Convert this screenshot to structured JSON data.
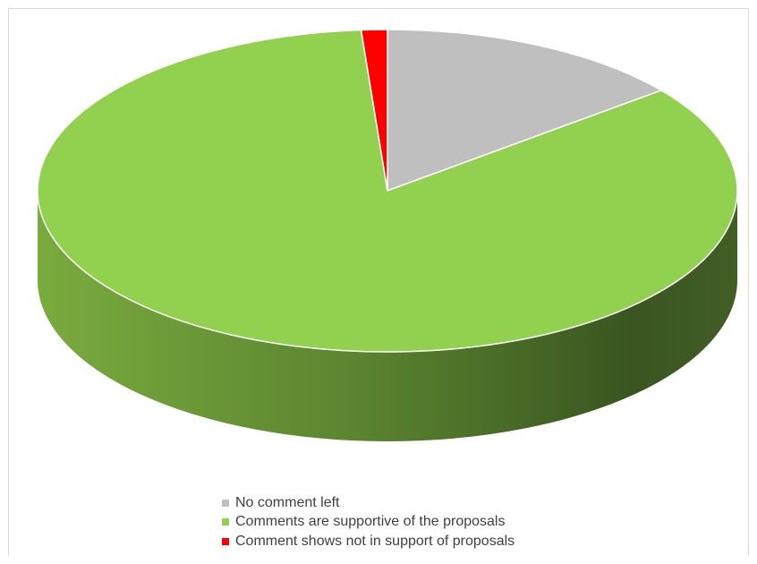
{
  "chart_data": {
    "type": "pie",
    "title": "",
    "style": "3d",
    "legend_position": "bottom",
    "slices": [
      {
        "label": "No comment left",
        "value": 14.3,
        "color": "#bfbfbf",
        "side_color": "#8c8c8c"
      },
      {
        "label": "Comments are supportive of the proposals",
        "value": 84.5,
        "color": "#92d050",
        "side_color": "#5e8e30"
      },
      {
        "label": "Comment shows not in support of proposals",
        "value": 1.2,
        "color": "#ff0000",
        "side_color": "#b30000"
      }
    ]
  },
  "legend": {
    "items": [
      {
        "label": "No comment left",
        "color": "#bfbfbf"
      },
      {
        "label": "Comments are supportive of the proposals",
        "color": "#92d050"
      },
      {
        "label": "Comment shows not in support of proposals",
        "color": "#ff0000"
      }
    ]
  }
}
